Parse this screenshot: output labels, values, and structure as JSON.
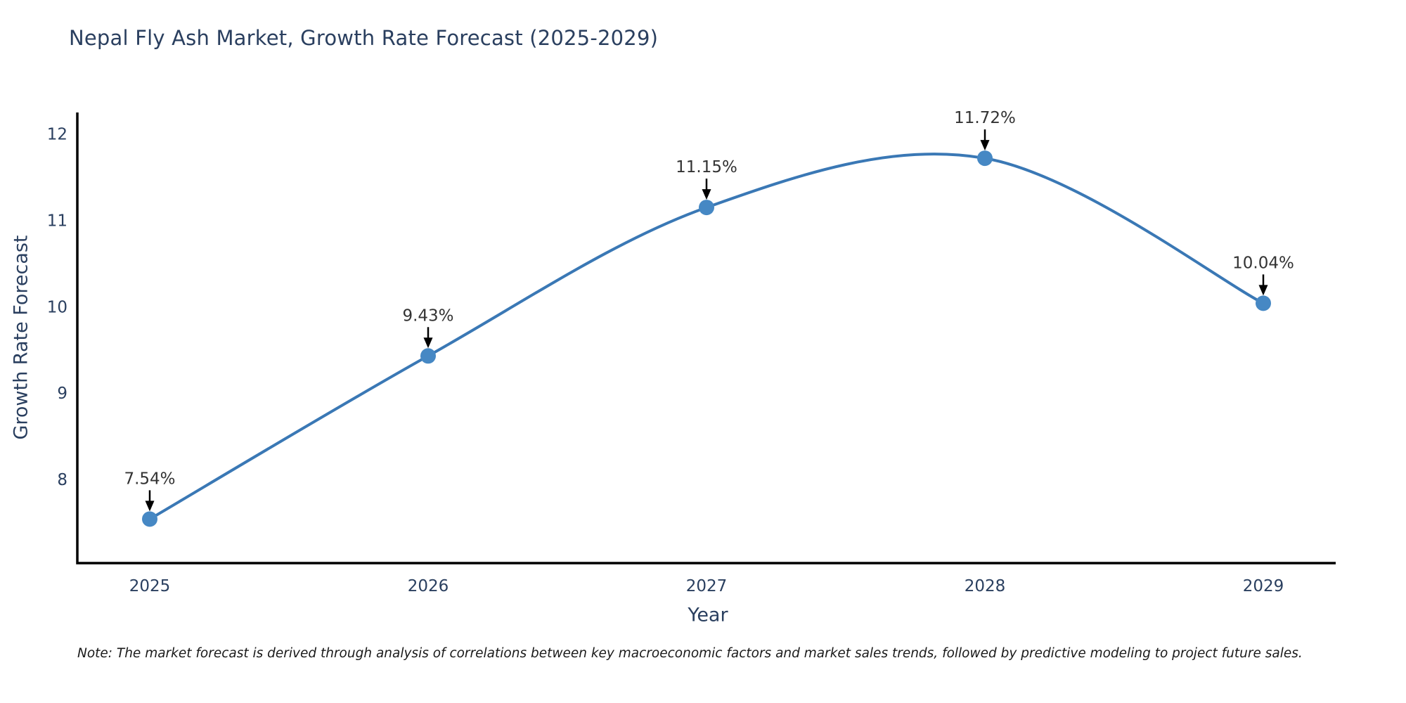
{
  "chart_data": {
    "type": "line",
    "line_shape": "spline",
    "title": "Nepal Fly Ash Market, Growth Rate Forecast (2025-2029)",
    "xlabel": "Year",
    "ylabel": "Growth Rate Forecast",
    "categories": [
      "2025",
      "2026",
      "2027",
      "2028",
      "2029"
    ],
    "series": [
      {
        "name": "Growth Rate Forecast",
        "values": [
          7.54,
          9.43,
          11.15,
          11.72,
          10.04
        ],
        "point_labels": [
          "7.54%",
          "9.43%",
          "11.15%",
          "11.72%",
          "10.04%"
        ]
      }
    ],
    "yticks": [
      8,
      9,
      10,
      11,
      12
    ],
    "ylim": [
      7.03,
      12.25
    ],
    "grid": false,
    "legend_position": "none",
    "annotations_have_arrows": true,
    "colors": {
      "line": "#3a78b5",
      "marker": "#4688c4",
      "axis": "#000000",
      "title": "#2a3f5f",
      "tick_label": "#2a3f5f",
      "annotation_text": "#333333",
      "arrow": "#000000",
      "background": "#ffffff"
    }
  },
  "note": {
    "text": "Note: The market forecast is derived through analysis of correlations between key macroeconomic factors and market sales trends, followed by predictive modeling to project future sales."
  }
}
